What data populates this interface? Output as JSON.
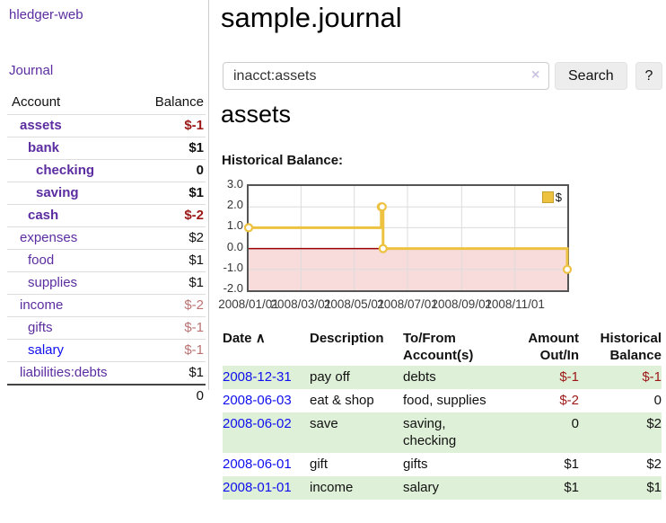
{
  "app": {
    "brand": "hledger-web"
  },
  "sidebar": {
    "nav_journal": "Journal",
    "accounts": {
      "header_account": "Account",
      "header_balance": "Balance",
      "rows": [
        {
          "name": "assets",
          "balance": "$-1",
          "indent": 1,
          "bold": true,
          "link": "purple",
          "bal_style": "neg"
        },
        {
          "name": "bank",
          "balance": "$1",
          "indent": 2,
          "bold": true,
          "link": "purple",
          "bal_style": ""
        },
        {
          "name": "checking",
          "balance": "0",
          "indent": 3,
          "bold": true,
          "link": "purple",
          "bal_style": ""
        },
        {
          "name": "saving",
          "balance": "$1",
          "indent": 3,
          "bold": true,
          "link": "purple",
          "bal_style": ""
        },
        {
          "name": "cash",
          "balance": "$-2",
          "indent": 2,
          "bold": true,
          "link": "purple",
          "bal_style": "neg"
        },
        {
          "name": "expenses",
          "balance": "$2",
          "indent": 1,
          "bold": false,
          "link": "purple",
          "bal_style": ""
        },
        {
          "name": "food",
          "balance": "$1",
          "indent": 2,
          "bold": false,
          "link": "purple",
          "bal_style": ""
        },
        {
          "name": "supplies",
          "balance": "$1",
          "indent": 2,
          "bold": false,
          "link": "purple",
          "bal_style": ""
        },
        {
          "name": "income",
          "balance": "$-2",
          "indent": 1,
          "bold": false,
          "link": "purple",
          "bal_style": "fneg"
        },
        {
          "name": "gifts",
          "balance": "$-1",
          "indent": 2,
          "bold": false,
          "link": "purple",
          "bal_style": "fneg"
        },
        {
          "name": "salary",
          "balance": "$-1",
          "indent": 2,
          "bold": false,
          "link": "blue",
          "bal_style": "fneg"
        },
        {
          "name": "liabilities:debts",
          "balance": "$1",
          "indent": 1,
          "bold": false,
          "link": "purple",
          "bal_style": ""
        }
      ],
      "total": "0"
    }
  },
  "header": {
    "title": "sample.journal"
  },
  "search": {
    "value": "inacct:assets",
    "button_label": "Search",
    "help_label": "?"
  },
  "icons": {
    "clear": "×",
    "sort_asc": "∧"
  },
  "account_page": {
    "heading": "assets",
    "chart_label": "Historical Balance:"
  },
  "chart_data": {
    "type": "line",
    "step": true,
    "title": "Historical Balance",
    "series": [
      {
        "name": "$",
        "color": "#edc240",
        "points": [
          [
            "2008-01-01",
            1
          ],
          [
            "2008-06-01",
            2
          ],
          [
            "2008-06-02",
            2
          ],
          [
            "2008-06-03",
            0
          ],
          [
            "2008-12-31",
            -1
          ]
        ]
      }
    ],
    "xlim": [
      "2008-01-01",
      "2008-12-31"
    ],
    "ylim": [
      -2,
      3
    ],
    "yticks": [
      3.0,
      2.0,
      1.0,
      0.0,
      -1.0,
      -2.0
    ],
    "xticks": [
      [
        "2008-01-01",
        "2008/01/01"
      ],
      [
        "2008-03-01",
        "2008/03/01"
      ],
      [
        "2008-05-01",
        "2008/05/01"
      ],
      [
        "2008-07-01",
        "2008/07/01"
      ],
      [
        "2008-09-01",
        "2008/09/01"
      ],
      [
        "2008-11-01",
        "2008/11/01"
      ]
    ],
    "legend": {
      "label": "$",
      "position": "top-right"
    },
    "grid": true,
    "negative_band": {
      "from": -2,
      "to": 0,
      "color": "#f8dbdb"
    },
    "zero_line_color": "#990000",
    "grid_color": "#dcdcdc"
  },
  "transactions": {
    "headers": [
      "Date",
      "Description",
      "To/From Account(s)",
      "Amount Out/In",
      "Historical Balance"
    ],
    "rows": [
      {
        "date": "2008-12-31",
        "description": "pay off",
        "accounts": "debts",
        "amount": "$-1",
        "balance": "$-1",
        "amount_neg": true,
        "balance_neg": true
      },
      {
        "date": "2008-06-03",
        "description": "eat & shop",
        "accounts": "food, supplies",
        "amount": "$-2",
        "balance": "0",
        "amount_neg": true,
        "balance_neg": false
      },
      {
        "date": "2008-06-02",
        "description": "save",
        "accounts": "saving,\nchecking",
        "amount": "0",
        "balance": "$2",
        "amount_neg": false,
        "balance_neg": false
      },
      {
        "date": "2008-06-01",
        "description": "gift",
        "accounts": "gifts",
        "amount": "$1",
        "balance": "$2",
        "amount_neg": false,
        "balance_neg": false
      },
      {
        "date": "2008-01-01",
        "description": "income",
        "accounts": "salary",
        "amount": "$1",
        "balance": "$1",
        "amount_neg": false,
        "balance_neg": false
      }
    ]
  }
}
